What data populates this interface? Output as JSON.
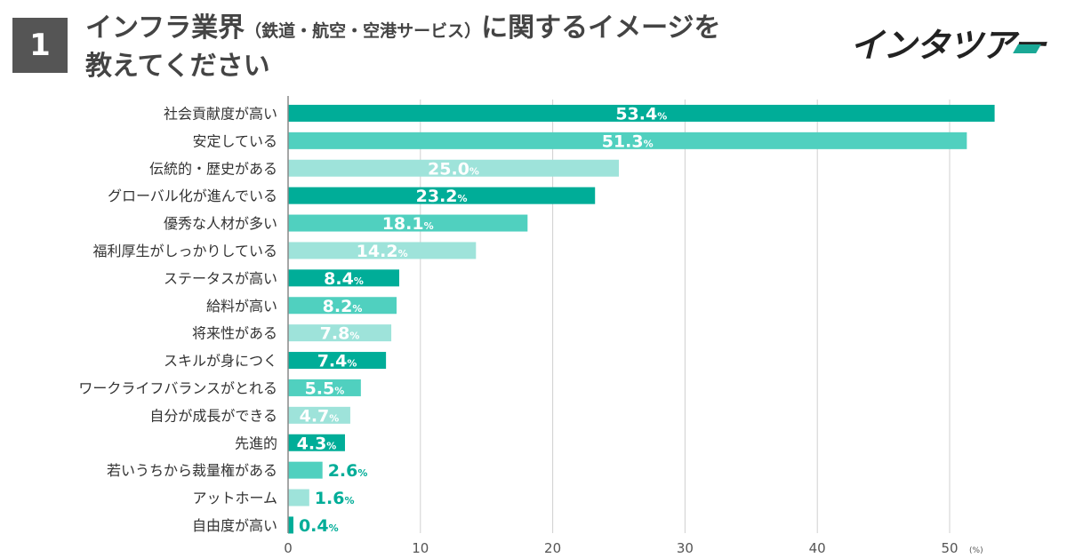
{
  "question": {
    "number": "1",
    "title_main": "インフラ業界",
    "title_paren": "（鉄道・航空・空港サービス）",
    "title_rest": "に関するイメージを",
    "title_line2": "教えてください"
  },
  "logo": {
    "text": "インタツアー"
  },
  "colors": {
    "dark": "#00ad98",
    "mid": "#50d0bf",
    "light": "#9ee3da",
    "grid": "#d0d0d0",
    "axis": "#888888"
  },
  "chart_data": {
    "type": "bar",
    "orientation": "horizontal",
    "title": "インフラ業界（鉄道・航空・空港サービス）に関するイメージを教えてください",
    "categories": [
      "社会貢献度が高い",
      "安定している",
      "伝統的・歴史がある",
      "グローバル化が進んでいる",
      "優秀な人材が多い",
      "福利厚生がしっかりしている",
      "ステータスが高い",
      "給料が高い",
      "将来性がある",
      "スキルが身につく",
      "ワークライフバランスがとれる",
      "自分が成長ができる",
      "先進的",
      "若いうちから裁量権がある",
      "アットホーム",
      "自由度が高い"
    ],
    "values": [
      53.4,
      51.3,
      25.0,
      23.2,
      18.1,
      14.2,
      8.4,
      8.2,
      7.8,
      7.4,
      5.5,
      4.7,
      4.3,
      2.6,
      1.6,
      0.4
    ],
    "value_labels": [
      "53.4",
      "51.3",
      "25.0",
      "23.2",
      "18.1",
      "14.2",
      "8.4",
      "8.2",
      "7.8",
      "7.4",
      "5.5",
      "4.7",
      "4.3",
      "2.6",
      "1.6",
      "0.4"
    ],
    "shades": [
      "dark",
      "mid",
      "light",
      "dark",
      "mid",
      "light",
      "dark",
      "mid",
      "light",
      "dark",
      "mid",
      "light",
      "dark",
      "mid",
      "light",
      "dark"
    ],
    "percent_suffix": "%",
    "xlim": [
      0,
      55
    ],
    "xticks": [
      0,
      10,
      20,
      30,
      40,
      50
    ],
    "xticks_labels": [
      "0",
      "10",
      "20",
      "30",
      "40",
      "50"
    ],
    "xlabel": "(%)",
    "grid": true
  }
}
